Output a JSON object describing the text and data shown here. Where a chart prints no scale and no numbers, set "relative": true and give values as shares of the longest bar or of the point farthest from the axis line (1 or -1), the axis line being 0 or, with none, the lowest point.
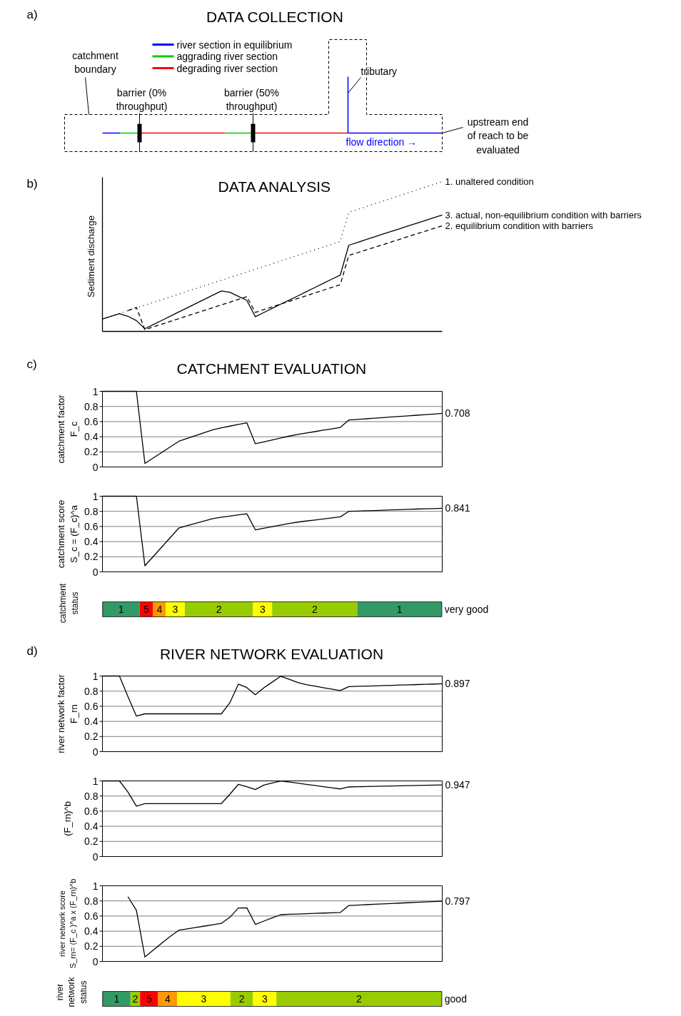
{
  "chart_data": [
    {
      "type": "other",
      "title": "DATA COLLECTION",
      "series": [
        {
          "name": "river section in equilibrium",
          "color": "#0000ff"
        },
        {
          "name": "aggrading river section",
          "color": "#00cc00"
        },
        {
          "name": "degrading river section",
          "color": "#ff0000"
        }
      ],
      "annotations": [
        "a)",
        "catchment\nboundary",
        "barrier (0%\nthroughput)",
        "barrier (50%\nthroughput)",
        "tributary",
        "upstream end\nof reach to be\nevaluated",
        "flow direction →"
      ]
    },
    {
      "type": "line",
      "title": "DATA ANALYSIS",
      "ylabel": "Sediment discharge",
      "relative": true,
      "annotations": [
        "b)"
      ],
      "categories": [
        null,
        null,
        null,
        null,
        null,
        null,
        null,
        null,
        null,
        null,
        null,
        null,
        null,
        null,
        null,
        null,
        null,
        null,
        null,
        null,
        null,
        null,
        null,
        null,
        null,
        null,
        null,
        null,
        null,
        null,
        null,
        null,
        null,
        null,
        null,
        null,
        null,
        null,
        null,
        null,
        null
      ],
      "series": [
        {
          "name": "1. unaltered condition",
          "color": "#000000",
          "line_style": "dotted",
          "values": [
            0.083,
            0.101,
            0.12,
            0.138,
            0.157,
            0.175,
            0.194,
            0.212,
            0.231,
            0.249,
            0.268,
            0.286,
            0.305,
            0.323,
            0.342,
            0.36,
            0.379,
            0.397,
            0.415,
            0.434,
            0.452,
            0.471,
            0.489,
            0.508,
            0.526,
            0.545,
            0.563,
            0.582,
            0.6,
            0.795,
            0.813,
            0.832,
            0.851,
            0.869,
            0.888,
            0.907,
            0.925,
            0.944,
            0.963,
            0.981,
            1
          ]
        },
        {
          "name": "3. actual, non-equilibrium condition with barriers",
          "color": "#000000",
          "line_style": "solid",
          "values": [
            0.083,
            0.101,
            0.119,
            0.101,
            0.072,
            0.018,
            0.046,
            0.074,
            0.102,
            0.13,
            0.158,
            0.186,
            0.214,
            0.242,
            0.27,
            0.261,
            0.234,
            0.207,
            0.098,
            0.126,
            0.154,
            0.182,
            0.209,
            0.237,
            0.265,
            0.293,
            0.321,
            0.349,
            0.376,
            0.575,
            0.594,
            0.612,
            0.63,
            0.649,
            0.667,
            0.685,
            0.704,
            0.722,
            0.74,
            0.759,
            0.777
          ]
        },
        {
          "name": "2. equilibrium condition with barriers",
          "color": "#000000",
          "line_style": "dashed",
          "values": [
            null,
            null,
            null,
            0.139,
            0.16,
            0.012,
            0.03,
            0.048,
            0.067,
            0.085,
            0.104,
            0.122,
            0.14,
            0.159,
            0.177,
            0.195,
            0.214,
            0.232,
            0.127,
            0.146,
            0.164,
            0.183,
            0.201,
            0.22,
            0.238,
            0.257,
            0.275,
            0.294,
            0.312,
            0.507,
            0.525,
            0.543,
            0.561,
            0.579,
            0.597,
            0.615,
            0.633,
            0.651,
            0.669,
            0.687,
            0.705
          ]
        }
      ]
    },
    {
      "type": "line",
      "title": "CATCHMENT EVALUATION",
      "ylabel": "catchment factor\nF_c",
      "ylim": [
        0,
        1
      ],
      "yticks": [
        0,
        0.2,
        0.4,
        0.6,
        0.8,
        1
      ],
      "grid": "y",
      "tick_labels": "y",
      "categories": [
        null,
        null,
        null,
        null,
        null,
        null,
        null,
        null,
        null,
        null,
        null,
        null,
        null,
        null,
        null,
        null,
        null,
        null,
        null,
        null,
        null,
        null,
        null,
        null,
        null,
        null,
        null,
        null,
        null,
        null,
        null,
        null,
        null,
        null,
        null,
        null,
        null,
        null,
        null,
        null,
        null
      ],
      "annotations": [
        "c)",
        "0.708"
      ],
      "series": [
        {
          "color": "#000000",
          "values": [
            1,
            1,
            1,
            1,
            1,
            0.047,
            0.12,
            0.193,
            0.267,
            0.34,
            0.378,
            0.416,
            0.454,
            0.492,
            0.518,
            0.54,
            0.562,
            0.584,
            0.307,
            0.332,
            0.358,
            0.383,
            0.408,
            0.43,
            0.449,
            0.467,
            0.486,
            0.504,
            0.523,
            0.621,
            0.629,
            0.637,
            0.645,
            0.653,
            0.661,
            0.669,
            0.676,
            0.684,
            0.692,
            0.7,
            0.708
          ]
        }
      ]
    },
    {
      "type": "line",
      "ylabel": "catchment score\nS_c = (F_c)^a",
      "ylim": [
        0,
        1
      ],
      "yticks": [
        0,
        0.2,
        0.4,
        0.6,
        0.8,
        1
      ],
      "grid": "y",
      "tick_labels": "y",
      "categories": [
        null,
        null,
        null,
        null,
        null,
        null,
        null,
        null,
        null,
        null,
        null,
        null,
        null,
        null,
        null,
        null,
        null,
        null,
        null,
        null,
        null,
        null,
        null,
        null,
        null,
        null,
        null,
        null,
        null,
        null,
        null,
        null,
        null,
        null,
        null,
        null,
        null,
        null,
        null,
        null,
        null
      ],
      "annotations": [
        "0.841"
      ],
      "series": [
        {
          "color": "#000000",
          "values": [
            1,
            1,
            1,
            1,
            1,
            0.08,
            0.205,
            0.33,
            0.455,
            0.58,
            0.611,
            0.642,
            0.673,
            0.704,
            0.722,
            0.737,
            0.753,
            0.768,
            0.556,
            0.577,
            0.598,
            0.619,
            0.641,
            0.658,
            0.672,
            0.686,
            0.7,
            0.714,
            0.728,
            0.8,
            0.804,
            0.808,
            0.811,
            0.815,
            0.819,
            0.822,
            0.826,
            0.83,
            0.834,
            0.837,
            0.841
          ]
        }
      ]
    },
    {
      "type": "other",
      "ylabel": "catchment\nstatus",
      "colors": [
        "#339966",
        "#ff0000",
        "#ff9900",
        "#ffff00",
        "#99cc00",
        "#ffff00",
        "#99cc00",
        "#339966"
      ],
      "annotations": [
        "1",
        "5",
        "4",
        "3",
        "2",
        "3",
        "2",
        "1",
        "very good"
      ]
    },
    {
      "type": "line",
      "title": "RIVER NETWORK EVALUATION",
      "ylabel": "river network factor\nF_rn",
      "ylim": [
        0,
        1
      ],
      "yticks": [
        0,
        0.2,
        0.4,
        0.6,
        0.8,
        1
      ],
      "grid": "y",
      "tick_labels": "y",
      "categories": [
        null,
        null,
        null,
        null,
        null,
        null,
        null,
        null,
        null,
        null,
        null,
        null,
        null,
        null,
        null,
        null,
        null,
        null,
        null,
        null,
        null,
        null,
        null,
        null,
        null,
        null,
        null,
        null,
        null,
        null,
        null,
        null,
        null,
        null,
        null,
        null,
        null,
        null,
        null,
        null,
        null
      ],
      "annotations": [
        "d)",
        "0.897"
      ],
      "series": [
        {
          "color": "#000000",
          "values": [
            1,
            1,
            1,
            0.728,
            0.47,
            0.5,
            0.5,
            0.5,
            0.5,
            0.5,
            0.5,
            0.5,
            0.5,
            0.5,
            0.5,
            0.647,
            0.892,
            0.847,
            0.753,
            0.845,
            0.921,
            0.997,
            0.957,
            0.913,
            0.886,
            0.866,
            0.846,
            0.826,
            0.807,
            0.86,
            0.864,
            0.867,
            0.87,
            0.874,
            0.877,
            0.88,
            0.884,
            0.887,
            0.89,
            0.894,
            0.897
          ]
        }
      ]
    },
    {
      "type": "line",
      "ylabel": "(F_rn)^b",
      "ylim": [
        0,
        1
      ],
      "yticks": [
        0,
        0.2,
        0.4,
        0.6,
        0.8,
        1
      ],
      "grid": "y",
      "tick_labels": "y",
      "categories": [
        null,
        null,
        null,
        null,
        null,
        null,
        null,
        null,
        null,
        null,
        null,
        null,
        null,
        null,
        null,
        null,
        null,
        null,
        null,
        null,
        null,
        null,
        null,
        null,
        null,
        null,
        null,
        null,
        null,
        null,
        null,
        null,
        null,
        null,
        null,
        null,
        null,
        null,
        null,
        null,
        null
      ],
      "annotations": [
        "0.947"
      ],
      "series": [
        {
          "color": "#000000",
          "values": [
            1,
            1,
            1,
            0.852,
            0.667,
            0.7,
            0.7,
            0.7,
            0.7,
            0.7,
            0.7,
            0.7,
            0.7,
            0.7,
            0.7,
            0.823,
            0.955,
            0.924,
            0.885,
            0.945,
            0.973,
            0.999,
            0.985,
            0.97,
            0.955,
            0.94,
            0.924,
            0.909,
            0.894,
            0.92,
            0.923,
            0.925,
            0.928,
            0.93,
            0.933,
            0.935,
            0.937,
            0.94,
            0.942,
            0.945,
            0.947
          ]
        }
      ]
    },
    {
      "type": "line",
      "ylabel": "river network score\nS_rn= (F_c )^a x (F_rn)^b",
      "ylim": [
        0,
        1
      ],
      "yticks": [
        0,
        0.2,
        0.4,
        0.6,
        0.8,
        1
      ],
      "grid": "y",
      "tick_labels": "y",
      "categories": [
        null,
        null,
        null,
        null,
        null,
        null,
        null,
        null,
        null,
        null,
        null,
        null,
        null,
        null,
        null,
        null,
        null,
        null,
        null,
        null,
        null,
        null,
        null,
        null,
        null,
        null,
        null,
        null,
        null,
        null,
        null,
        null,
        null,
        null,
        null,
        null,
        null,
        null,
        null,
        null,
        null
      ],
      "annotations": [
        "0.797"
      ],
      "series": [
        {
          "color": "#000000",
          "values": [
            null,
            null,
            null,
            0.856,
            0.675,
            0.059,
            0.15,
            0.242,
            0.333,
            0.413,
            0.431,
            0.449,
            0.467,
            0.485,
            0.503,
            0.584,
            0.706,
            0.709,
            0.49,
            0.533,
            0.576,
            0.618,
            0.624,
            0.627,
            0.631,
            0.635,
            0.639,
            0.643,
            0.647,
            0.74,
            0.745,
            0.75,
            0.755,
            0.76,
            0.766,
            0.771,
            0.776,
            0.781,
            0.786,
            0.792,
            0.797
          ]
        }
      ]
    },
    {
      "type": "other",
      "ylabel": "river\nnetwork\nstatus",
      "colors": [
        "#339966",
        "#99cc00",
        "#ff0000",
        "#ff9900",
        "#ffff00",
        "#99cc00",
        "#ffff00",
        "#99cc00"
      ],
      "annotations": [
        "1",
        "2",
        "5",
        "4",
        "3",
        "2",
        "3",
        "2",
        "good"
      ]
    }
  ]
}
